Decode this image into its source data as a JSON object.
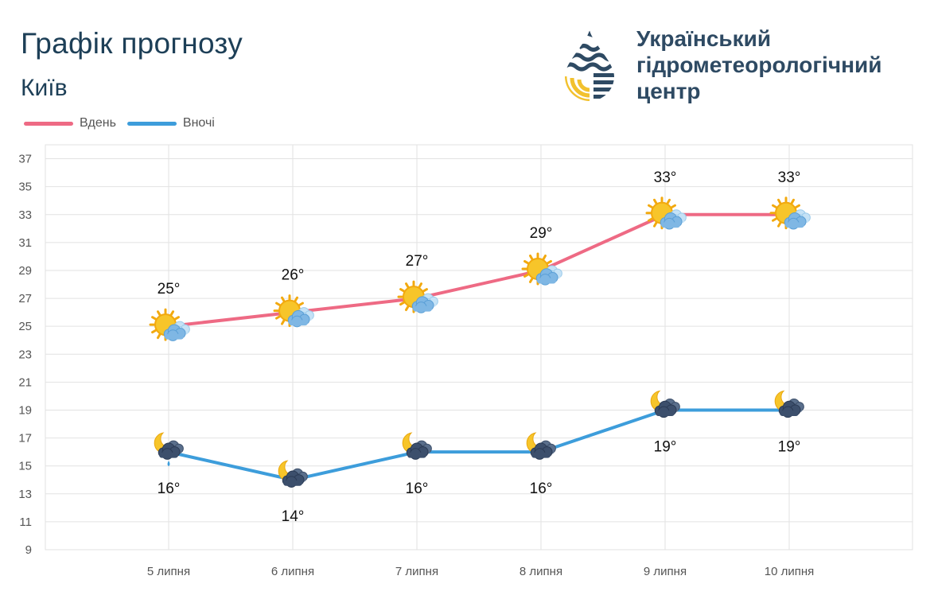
{
  "header": {
    "title": "Графік прогнозу",
    "city": "Київ"
  },
  "org": {
    "line1": "Український",
    "line2": "гідрометеорологічний",
    "line3": "центр"
  },
  "colors": {
    "day": "#ee6a84",
    "night": "#3d9ddb",
    "text": "#1d3f57",
    "org_text": "#2e4a63",
    "grid": "#e2e2e2"
  },
  "chart_data": {
    "type": "line",
    "title": "Графік прогнозу",
    "categories": [
      "5 липня",
      "6 липня",
      "7 липня",
      "8 липня",
      "9 липня",
      "10 липня"
    ],
    "series": [
      {
        "name": "Вдень",
        "values": [
          25,
          26,
          27,
          29,
          33,
          33
        ],
        "labels": [
          "25°",
          "26°",
          "27°",
          "29°",
          "33°",
          "33°"
        ],
        "icons": [
          "sun-cloud-icon",
          "sun-cloud-icon",
          "sun-cloud-icon",
          "sun-cloud-icon",
          "sun-cloud-icon",
          "sun-cloud-icon"
        ]
      },
      {
        "name": "Вночі",
        "values": [
          16,
          14,
          16,
          16,
          19,
          19
        ],
        "labels": [
          "16°",
          "14°",
          "16°",
          "16°",
          "19°",
          "19°"
        ],
        "icons": [
          "moon-cloud-rain-icon",
          "moon-cloud-icon",
          "moon-cloud-icon",
          "moon-cloud-icon",
          "moon-cloud-icon",
          "moon-cloud-icon"
        ]
      }
    ],
    "y_ticks": [
      "37",
      "35",
      "33",
      "31",
      "29",
      "27",
      "25",
      "23",
      "21",
      "19",
      "17",
      "15",
      "13",
      "11",
      "9"
    ],
    "ylim": [
      9,
      38
    ],
    "xlabel": "",
    "ylabel": "",
    "grid": true,
    "legend_position": "top-left"
  }
}
